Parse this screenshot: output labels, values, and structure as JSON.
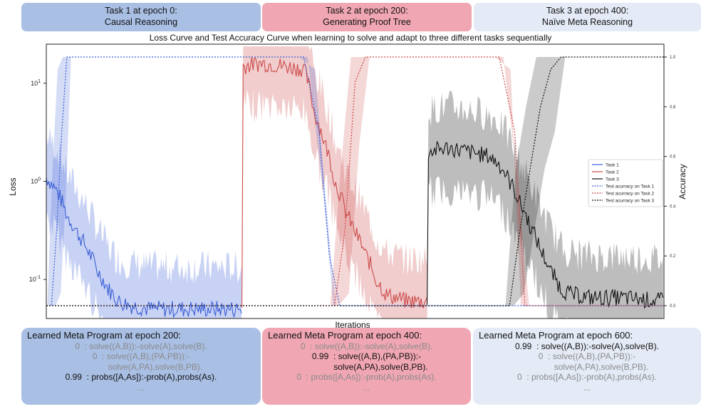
{
  "task_boxes": [
    {
      "line1": "Task 1 at epoch 0:",
      "line2": "Causal Reasoning"
    },
    {
      "line1": "Task 2 at epoch 200:",
      "line2": "Generating Proof Tree"
    },
    {
      "line1": "Task 3 at epoch 400:",
      "line2": "Naïve Meta Reasoning"
    }
  ],
  "colors": {
    "task1": "#3b5fd6",
    "task2": "#cc4a4a",
    "task3": "#111111",
    "box_blue": "#a9bfe4",
    "box_pink": "#f0a7b3",
    "box_light": "#e4eaf6"
  },
  "chart_data": {
    "type": "line",
    "title": "Loss Curve and Test Accuracy Curve when learning to solve and adapt to three different tasks sequentially",
    "xlabel": "Iterations",
    "ylabel": "Loss",
    "y2label": "Accuracy",
    "yscale": "log",
    "y_ticks": [
      "10^1",
      "10^0",
      "10^-1"
    ],
    "y2_ticks": [
      "1.0",
      "0.8",
      "0.6",
      "0.4",
      "0.2",
      "0.0"
    ],
    "ylim": [
      0.04,
      25
    ],
    "y2lim": [
      0,
      1.0
    ],
    "xlim": [
      0,
      600
    ],
    "legend_position": "center-right",
    "series": [
      {
        "name": "Task 1",
        "axis": "loss",
        "style": "solid",
        "points": [
          [
            0,
            1.1
          ],
          [
            10,
            0.8
          ],
          [
            20,
            0.45
          ],
          [
            30,
            0.3
          ],
          [
            40,
            0.2
          ],
          [
            50,
            0.12
          ],
          [
            60,
            0.08
          ],
          [
            70,
            0.06
          ],
          [
            80,
            0.055
          ],
          [
            100,
            0.05
          ],
          [
            130,
            0.05
          ],
          [
            160,
            0.05
          ],
          [
            190,
            0.05
          ]
        ]
      },
      {
        "name": "Task 2",
        "axis": "loss",
        "style": "solid",
        "points": [
          [
            190,
            0.05
          ],
          [
            191,
            15
          ],
          [
            210,
            16
          ],
          [
            230,
            15
          ],
          [
            250,
            14
          ],
          [
            260,
            5
          ],
          [
            270,
            2.5
          ],
          [
            280,
            1.0
          ],
          [
            290,
            0.5
          ],
          [
            300,
            0.3
          ],
          [
            310,
            0.18
          ],
          [
            320,
            0.1
          ],
          [
            330,
            0.07
          ],
          [
            340,
            0.065
          ],
          [
            350,
            0.06
          ],
          [
            370,
            0.06
          ]
        ]
      },
      {
        "name": "Task 3",
        "axis": "loss",
        "style": "solid",
        "points": [
          [
            370,
            0.06
          ],
          [
            371,
            2.0
          ],
          [
            390,
            2.2
          ],
          [
            410,
            2.0
          ],
          [
            430,
            1.8
          ],
          [
            440,
            1.5
          ],
          [
            450,
            1.0
          ],
          [
            460,
            0.6
          ],
          [
            470,
            0.35
          ],
          [
            480,
            0.2
          ],
          [
            490,
            0.12
          ],
          [
            500,
            0.08
          ],
          [
            510,
            0.07
          ],
          [
            530,
            0.065
          ],
          [
            560,
            0.065
          ],
          [
            600,
            0.06
          ]
        ]
      },
      {
        "name": "Test acurracy on Task 1",
        "axis": "accuracy",
        "style": "dotted",
        "points": [
          [
            0,
            0.0
          ],
          [
            5,
            0.0
          ],
          [
            10,
            0.3
          ],
          [
            15,
            0.7
          ],
          [
            20,
            1.0
          ],
          [
            160,
            1.0
          ],
          [
            250,
            1.0
          ],
          [
            265,
            0.7
          ],
          [
            275,
            0.2
          ],
          [
            285,
            0.0
          ],
          [
            600,
            0.0
          ]
        ]
      },
      {
        "name": "Test acurracy on Task 2",
        "axis": "accuracy",
        "style": "dotted",
        "points": [
          [
            0,
            0.0
          ],
          [
            190,
            0.0
          ],
          [
            280,
            0.0
          ],
          [
            290,
            0.3
          ],
          [
            300,
            0.9
          ],
          [
            310,
            1.0
          ],
          [
            440,
            1.0
          ],
          [
            455,
            0.7
          ],
          [
            465,
            0.0
          ],
          [
            600,
            0.0
          ]
        ]
      },
      {
        "name": "Test acurracy on Task 3",
        "axis": "accuracy",
        "style": "dotted",
        "points": [
          [
            0,
            0.0
          ],
          [
            450,
            0.0
          ],
          [
            460,
            0.3
          ],
          [
            470,
            0.55
          ],
          [
            480,
            0.8
          ],
          [
            490,
            0.95
          ],
          [
            500,
            1.0
          ],
          [
            600,
            1.0
          ]
        ]
      }
    ]
  },
  "programs": [
    {
      "title": "Learned Meta Program at epoch 200:",
      "lines": [
        {
          "text": "0  : solve((A,B)):-solve(A),solve(B).",
          "strong": false
        },
        {
          "text": "0  : solve((A,B),(PA,PB)):-",
          "strong": false
        },
        {
          "text": "            solve(A,PA),solve(B,PB).",
          "strong": false
        },
        {
          "text": "0.99  : probs([A,As]):-prob(A),probs(As).",
          "strong": true
        },
        {
          "text": "...",
          "strong": false
        }
      ]
    },
    {
      "title": "Learned Meta Program at epoch 400:",
      "lines": [
        {
          "text": "0  : solve((A,B)):-solve(A),solve(B).",
          "strong": false
        },
        {
          "text": "0.99  : solve((A,B),(PA,PB)):-",
          "strong": true
        },
        {
          "text": "            solve(A,PA),solve(B,PB).",
          "strong": true
        },
        {
          "text": "0  : probs([A,As]):-prob(A),probs(As).",
          "strong": false
        },
        {
          "text": "...",
          "strong": false
        }
      ]
    },
    {
      "title": "Learned Meta Program at epoch 600:",
      "lines": [
        {
          "text": "0.99  : solve((A,B)):-solve(A),solve(B).",
          "strong": true
        },
        {
          "text": "0  : solve((A,B),(PA,PB)):-",
          "strong": false
        },
        {
          "text": "            solve(A,PA),solve(B,PB).",
          "strong": false
        },
        {
          "text": "0  : probs([A,As]):-prob(A),probs(As).",
          "strong": false
        },
        {
          "text": "...",
          "strong": false
        }
      ]
    }
  ]
}
